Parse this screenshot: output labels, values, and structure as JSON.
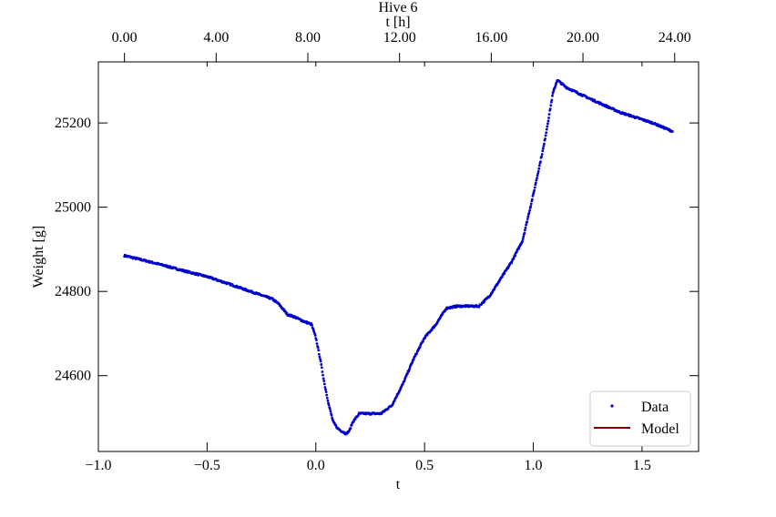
{
  "chart_data": {
    "type": "scatter",
    "title": "Hive 6",
    "xlabel": "t",
    "ylabel": "Weight  [g]",
    "top_xlabel": "t [h]",
    "xlim": [
      -1.0,
      1.76
    ],
    "ylim": [
      24420,
      25345
    ],
    "x_ticks": [
      -1.0,
      -0.5,
      0.0,
      0.5,
      1.0,
      1.5
    ],
    "x_tick_labels": [
      "−1.0",
      "−0.5",
      "0.0",
      "0.5",
      "1.0",
      "1.5"
    ],
    "y_ticks": [
      24600,
      24800,
      25000,
      25200
    ],
    "y_tick_labels": [
      "24600",
      "24800",
      "25000",
      "25200"
    ],
    "top_ticks": [
      0,
      4,
      8,
      12,
      16,
      20,
      24
    ],
    "top_tick_labels": [
      "0.00",
      "4.00",
      "8.00",
      "12.00",
      "16.00",
      "20.00",
      "24.00"
    ],
    "top_axis_hours_range": [
      0,
      24
    ],
    "top_axis_t_range": [
      -0.88,
      1.65
    ],
    "grid": false,
    "legend_position": "bottom-right",
    "series": [
      {
        "name": "Data",
        "color": "#0000cc",
        "marker": "dot",
        "x": [
          -0.88,
          -0.8,
          -0.7,
          -0.6,
          -0.5,
          -0.4,
          -0.3,
          -0.2,
          -0.17,
          -0.13,
          -0.1,
          -0.06,
          -0.02,
          0.0,
          0.02,
          0.04,
          0.06,
          0.08,
          0.1,
          0.12,
          0.14,
          0.155,
          0.17,
          0.2,
          0.25,
          0.3,
          0.35,
          0.4,
          0.45,
          0.5,
          0.55,
          0.6,
          0.65,
          0.7,
          0.75,
          0.8,
          0.85,
          0.9,
          0.95,
          1.0,
          1.05,
          1.09,
          1.11,
          1.15,
          1.25,
          1.4,
          1.55,
          1.64
        ],
        "y": [
          24885,
          24875,
          24862,
          24848,
          24835,
          24818,
          24800,
          24782,
          24770,
          24745,
          24740,
          24730,
          24722,
          24690,
          24640,
          24580,
          24530,
          24490,
          24475,
          24468,
          24462,
          24470,
          24490,
          24510,
          24510,
          24510,
          24530,
          24580,
          24640,
          24690,
          24720,
          24760,
          24765,
          24765,
          24765,
          24790,
          24830,
          24870,
          24920,
          25030,
          25150,
          25270,
          25302,
          25285,
          25260,
          25225,
          25200,
          25180
        ]
      },
      {
        "name": "Model",
        "color": "#8b0000",
        "marker": "line",
        "x": [],
        "y": []
      }
    ]
  }
}
